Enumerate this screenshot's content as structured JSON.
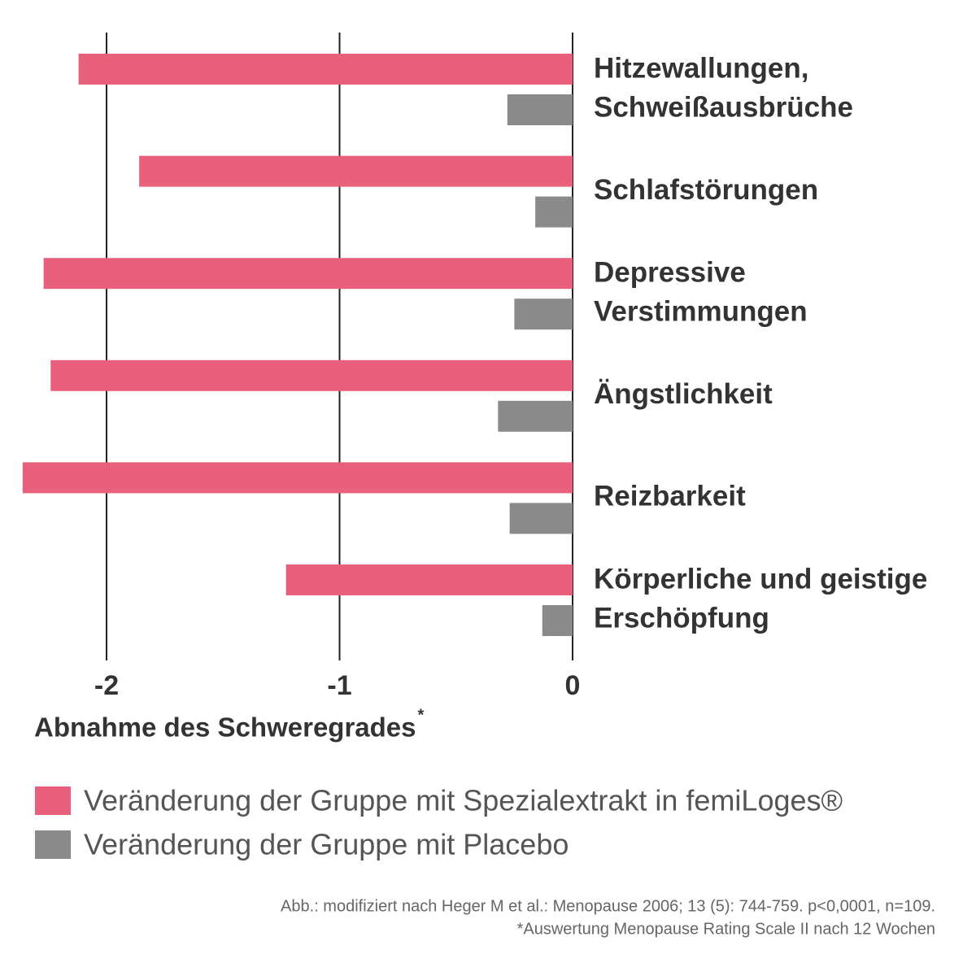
{
  "chart_data": {
    "type": "hbar",
    "categories": [
      [
        "Hitzewallungen,",
        "Schweißausbrüche"
      ],
      [
        "Schlafstörungen"
      ],
      [
        "Depressive",
        "Verstimmungen"
      ],
      [
        "Ängstlichkeit"
      ],
      [
        "Reizbarkeit"
      ],
      [
        "Körperliche und geistige",
        "Erschöpfung"
      ]
    ],
    "series": [
      {
        "name": "Veränderung der Gruppe mit Spezialextrakt in femiLoges®",
        "color": "#e8607c",
        "values": [
          -2.12,
          -1.86,
          -2.27,
          -2.24,
          -2.36,
          -1.23
        ]
      },
      {
        "name": "Veränderung der Gruppe mit Placebo",
        "color": "#8a8a8a",
        "values": [
          -0.28,
          -0.16,
          -0.25,
          -0.32,
          -0.27,
          -0.13
        ]
      }
    ],
    "xlim": [
      -2.4,
      0
    ],
    "xticks": [
      -2,
      -1,
      0
    ],
    "grid": true,
    "xlabel": "Abnahme des Schweregrades",
    "xlabel_sup": "*",
    "notes": [
      "Abb.: modifiziert nach Heger M et al.: Menopause 2006; 13 (5): 744-759. p<0,0001, n=109.",
      "*Auswertung Menopause Rating Scale II nach 12 Wochen"
    ]
  }
}
